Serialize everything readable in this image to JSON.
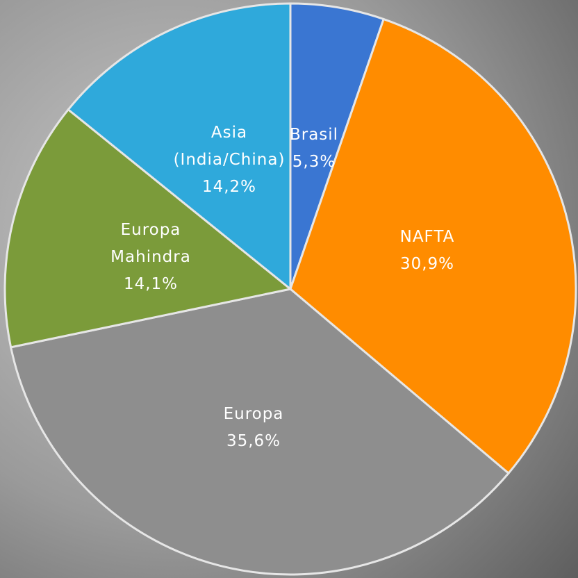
{
  "chart_data": {
    "type": "pie",
    "categories": [
      "Brasil",
      "NAFTA",
      "Europa",
      "Europa Mahindra",
      "Asia (India/China)"
    ],
    "values": [
      5.3,
      30.9,
      35.6,
      14.1,
      14.2
    ],
    "value_labels": [
      "5,3%",
      "30,9%",
      "35,6%",
      "14,1%",
      "14,2%"
    ],
    "colors": [
      "#3a76d2",
      "#ff8c00",
      "#8e8e8e",
      "#7b9b3a",
      "#2fa9db"
    ]
  }
}
